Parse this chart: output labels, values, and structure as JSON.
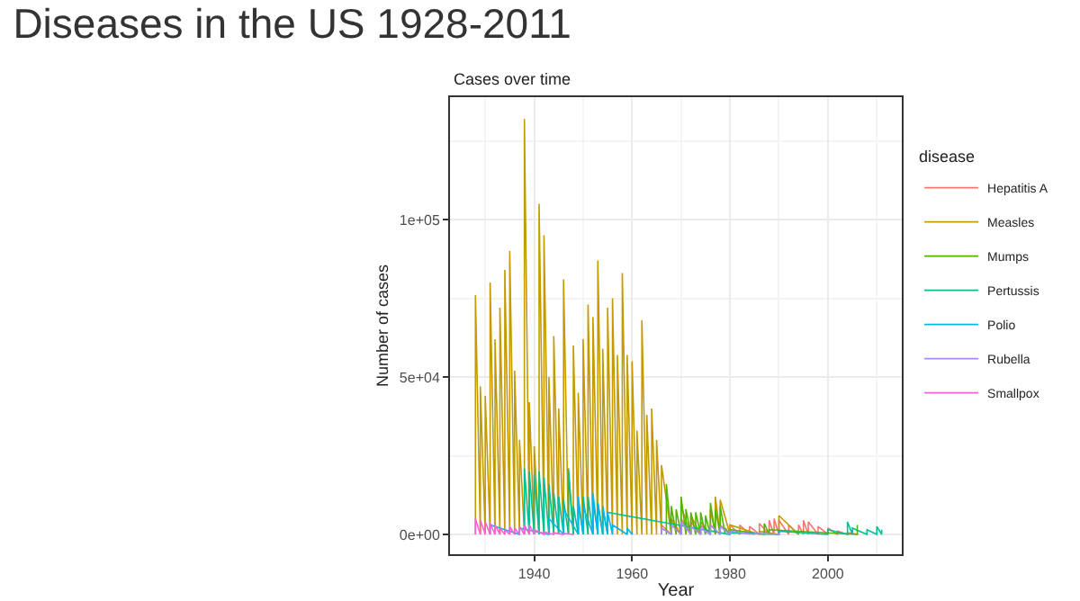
{
  "chart_data": {
    "type": "line",
    "title": "Diseases in the US 1928-2011",
    "subtitle": "Cases over time",
    "xlabel": "Year",
    "ylabel": "Number of cases",
    "legend_title": "disease",
    "legend": "right",
    "grid": true,
    "marker": "none",
    "line_style": "solid",
    "xlim": [
      1922.8,
      2015.1
    ],
    "xticks": [
      1940,
      1960,
      1980,
      2000
    ],
    "ylim": [
      -6300,
      138900
    ],
    "yticks": [
      {
        "value": 0,
        "label": "0e+00"
      },
      {
        "value": 50000,
        "label": "5e+04"
      },
      {
        "value": 100000,
        "label": "1e+05"
      }
    ],
    "series": [
      {
        "name": "Hepatitis A",
        "color": "#f8766d",
        "x": [
          1966,
          1966,
          1968,
          1968,
          1970,
          1970,
          1972,
          1972,
          1974,
          1974,
          1976,
          1976,
          1978,
          1978,
          1980,
          1980,
          1982,
          1982,
          1984,
          1984,
          1986,
          1986,
          1988,
          1988,
          1989,
          1989,
          1990,
          1990,
          1992,
          1992,
          1994,
          1994,
          1995,
          1995,
          1996,
          1996,
          1998,
          1998,
          2000,
          2000,
          2002,
          2002,
          2004,
          2004,
          2006,
          2006
        ],
        "values": [
          0,
          3000,
          0,
          4000,
          0,
          5000,
          0,
          4000,
          0,
          3000,
          0,
          3000,
          0,
          3000,
          0,
          3000,
          0,
          3000,
          0,
          2500,
          0,
          3500,
          0,
          4500,
          0,
          5000,
          0,
          4500,
          0,
          3000,
          0,
          3000,
          0,
          4500,
          0,
          4000,
          0,
          2500,
          0,
          2000,
          0,
          1000,
          0,
          600,
          0,
          400
        ]
      },
      {
        "name": "Measles",
        "color": "#c49a00",
        "x": [
          1928,
          1928,
          1929,
          1929,
          1930,
          1930,
          1931,
          1931,
          1932,
          1932,
          1933,
          1933,
          1934,
          1934,
          1935,
          1935,
          1936,
          1936,
          1937,
          1937,
          1938,
          1938,
          1939,
          1939,
          1940,
          1940,
          1941,
          1941,
          1942,
          1942,
          1943,
          1943,
          1944,
          1944,
          1945,
          1945,
          1946,
          1946,
          1947,
          1947,
          1948,
          1948,
          1949,
          1949,
          1950,
          1950,
          1951,
          1951,
          1952,
          1952,
          1953,
          1953,
          1954,
          1954,
          1955,
          1955,
          1956,
          1956,
          1957,
          1957,
          1958,
          1958,
          1959,
          1959,
          1960,
          1960,
          1961,
          1961,
          1962,
          1962,
          1963,
          1963,
          1964,
          1964,
          1965,
          1965,
          1966,
          1966,
          1968,
          1968,
          1970,
          1970,
          1972,
          1972,
          1974,
          1974,
          1976,
          1976,
          1977,
          1977,
          1978,
          1978,
          1980,
          1980,
          1986,
          1986,
          1990,
          1990,
          1994,
          1994
        ],
        "values": [
          0,
          76000,
          0,
          47000,
          0,
          44000,
          0,
          80000,
          0,
          62000,
          0,
          72000,
          0,
          84000,
          0,
          90000,
          0,
          52000,
          0,
          30000,
          0,
          132000,
          0,
          42000,
          0,
          28000,
          0,
          105000,
          0,
          95000,
          0,
          50000,
          0,
          63000,
          0,
          40000,
          0,
          81000,
          0,
          20000,
          0,
          60000,
          0,
          45000,
          0,
          62000,
          0,
          73000,
          0,
          69000,
          0,
          87000,
          0,
          59000,
          0,
          72000,
          0,
          75000,
          0,
          57000,
          0,
          83000,
          0,
          57000,
          0,
          55000,
          0,
          33000,
          0,
          68000,
          0,
          38000,
          0,
          40000,
          0,
          30000,
          0,
          22000,
          0,
          5000,
          0,
          9000,
          0,
          6000,
          0,
          4000,
          0,
          8000,
          0,
          12000,
          0,
          11000,
          0,
          3000,
          0,
          1000,
          0,
          6000,
          0,
          500
        ]
      },
      {
        "name": "Mumps",
        "color": "#53b400",
        "x": [
          1967,
          1967,
          1968,
          1968,
          1969,
          1969,
          1970,
          1970,
          1971,
          1971,
          1972,
          1972,
          1973,
          1973,
          1974,
          1974,
          1975,
          1975,
          1976,
          1976,
          1977,
          1977,
          1978,
          1978,
          1979,
          1979,
          1980,
          1980,
          1987,
          1987,
          1988,
          1988,
          2006,
          2006
        ],
        "values": [
          0,
          16000,
          0,
          9000,
          0,
          8000,
          0,
          12000,
          0,
          8000,
          0,
          7000,
          0,
          7000,
          0,
          7000,
          0,
          6000,
          0,
          10000,
          0,
          8000,
          0,
          9000,
          0,
          2000,
          0,
          1500,
          0,
          3500,
          0,
          1500,
          0,
          3000
        ]
      },
      {
        "name": "Pertussis",
        "color": "#00c094",
        "x": [
          1938,
          1938,
          1939,
          1939,
          1940,
          1940,
          1941,
          1941,
          1942,
          1942,
          1943,
          1943,
          1944,
          1944,
          1945,
          1945,
          1946,
          1946,
          1947,
          1947,
          1948,
          1948,
          1949,
          1949,
          1950,
          1950,
          1951,
          1951,
          1952,
          1952,
          1953,
          1953,
          1954,
          1954,
          1955,
          1955,
          1980,
          1980,
          1990,
          1990,
          2000,
          2000,
          2004,
          2004,
          2005,
          2005,
          2008,
          2008,
          2010,
          2010,
          2011,
          2011
        ],
        "values": [
          0,
          21000,
          0,
          20000,
          0,
          19000,
          0,
          20000,
          0,
          18000,
          0,
          16000,
          0,
          13000,
          0,
          12000,
          0,
          11000,
          0,
          21000,
          0,
          9000,
          0,
          10000,
          0,
          12000,
          0,
          12000,
          0,
          11000,
          0,
          10000,
          0,
          9000,
          0,
          7000,
          0,
          500,
          0,
          1000,
          0,
          1500,
          0,
          4000,
          0,
          2000,
          0,
          1500,
          0,
          2500,
          0,
          1500
        ]
      },
      {
        "name": "Polio",
        "color": "#00b6eb",
        "x": [
          1931,
          1931,
          1937,
          1937,
          1943,
          1943,
          1946,
          1946,
          1949,
          1949,
          1950,
          1950,
          1952,
          1952,
          1953,
          1953,
          1954,
          1954,
          1955,
          1955,
          1956,
          1956,
          1959,
          1959,
          1960,
          1960
        ],
        "values": [
          0,
          3000,
          0,
          2000,
          0,
          5000,
          0,
          8000,
          0,
          12000,
          0,
          9000,
          0,
          13000,
          0,
          10000,
          0,
          8000,
          0,
          7000,
          0,
          3000,
          0,
          2000,
          0,
          800
        ]
      },
      {
        "name": "Rubella",
        "color": "#a58aff",
        "x": [
          1966,
          1966,
          1968,
          1968,
          1970,
          1970,
          1972,
          1972,
          1974,
          1974,
          1976,
          1976,
          1978,
          1978,
          1980,
          1980,
          1985,
          1985,
          1990,
          1990
        ],
        "values": [
          0,
          2000,
          0,
          3000,
          0,
          4000,
          0,
          2500,
          0,
          2000,
          0,
          3000,
          0,
          2500,
          0,
          1000,
          0,
          300,
          0,
          500
        ]
      },
      {
        "name": "Smallpox",
        "color": "#fb61d7",
        "x": [
          1928,
          1928,
          1929,
          1929,
          1930,
          1930,
          1931,
          1931,
          1932,
          1932,
          1933,
          1933,
          1934,
          1934,
          1935,
          1935,
          1936,
          1936,
          1937,
          1937,
          1938,
          1938,
          1939,
          1939,
          1940,
          1940,
          1942,
          1942,
          1944,
          1944,
          1946,
          1946,
          1948,
          1948
        ],
        "values": [
          0,
          5000,
          0,
          4500,
          0,
          4000,
          0,
          3500,
          0,
          3000,
          0,
          2000,
          0,
          1500,
          0,
          2500,
          0,
          2000,
          0,
          2500,
          0,
          3000,
          0,
          3000,
          0,
          1500,
          0,
          800,
          0,
          500,
          0,
          300,
          0,
          100
        ]
      }
    ]
  }
}
